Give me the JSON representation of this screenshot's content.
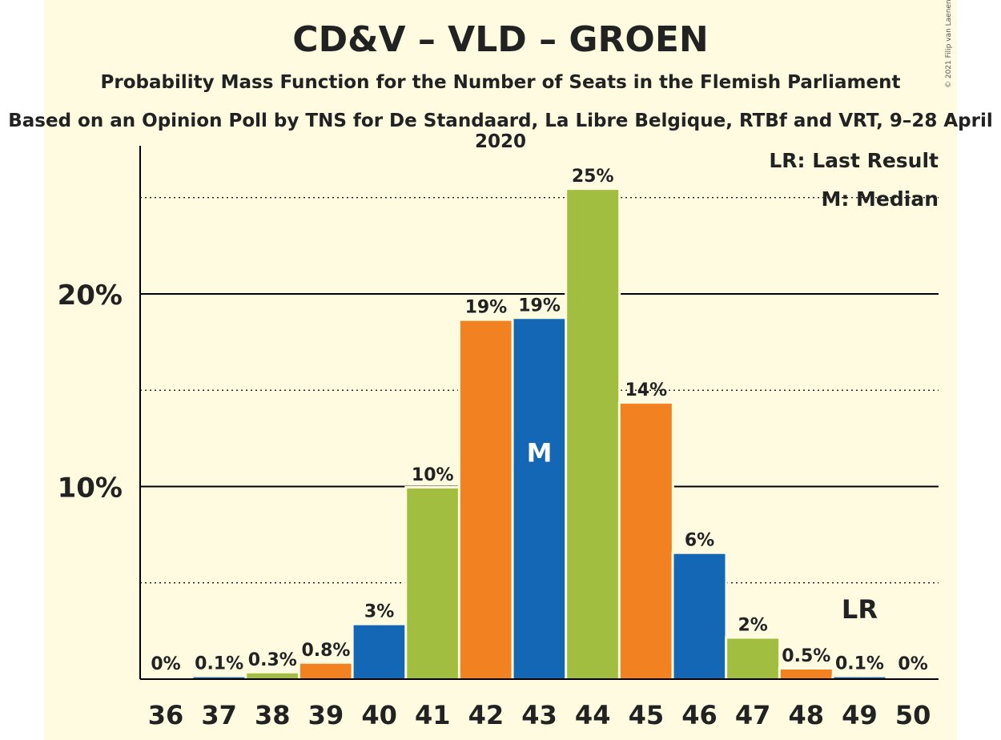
{
  "title": "CD&V – VLD – GROEN",
  "subtitle": "Probability Mass Function for the Number of Seats in the Flemish Parliament",
  "source": "Based on an Opinion Poll by TNS for De Standaard, La Libre Belgique, RTBf and VRT, 9–28 April 2020",
  "copyright": "© 2021 Filip van Laenen",
  "legend": {
    "last_result": "LR: Last Result",
    "median": "M: Median"
  },
  "colors": {
    "orange": "#F28121",
    "blue": "#1367B4",
    "green": "#A2BE40",
    "background": "#FEFBE0"
  },
  "chart_data": {
    "type": "bar",
    "categories": [
      "36",
      "37",
      "38",
      "39",
      "40",
      "41",
      "42",
      "43",
      "44",
      "45",
      "46",
      "47",
      "48",
      "49",
      "50"
    ],
    "values": [
      0,
      0.1,
      0.3,
      0.8,
      2.8,
      9.9,
      18.6,
      18.7,
      25.4,
      14.3,
      6.5,
      2.1,
      0.5,
      0.1,
      0
    ],
    "labels": [
      "0%",
      "0.1%",
      "0.3%",
      "0.8%",
      "3%",
      "10%",
      "19%",
      "19%",
      "25%",
      "14%",
      "6%",
      "2%",
      "0.5%",
      "0.1%",
      "0%"
    ],
    "bar_colors": [
      "orange",
      "blue",
      "green",
      "orange",
      "blue",
      "green",
      "orange",
      "blue",
      "green",
      "orange",
      "blue",
      "green",
      "orange",
      "blue",
      "green"
    ],
    "yticks": [
      10,
      20
    ],
    "ytick_labels": [
      "10%",
      "20%"
    ],
    "minor_gridlines": [
      5,
      15,
      25
    ],
    "ylim": [
      0,
      27.6
    ],
    "median_seat": "43",
    "median_marker": "M",
    "last_result_seat": "49",
    "last_result_marker": "LR"
  }
}
